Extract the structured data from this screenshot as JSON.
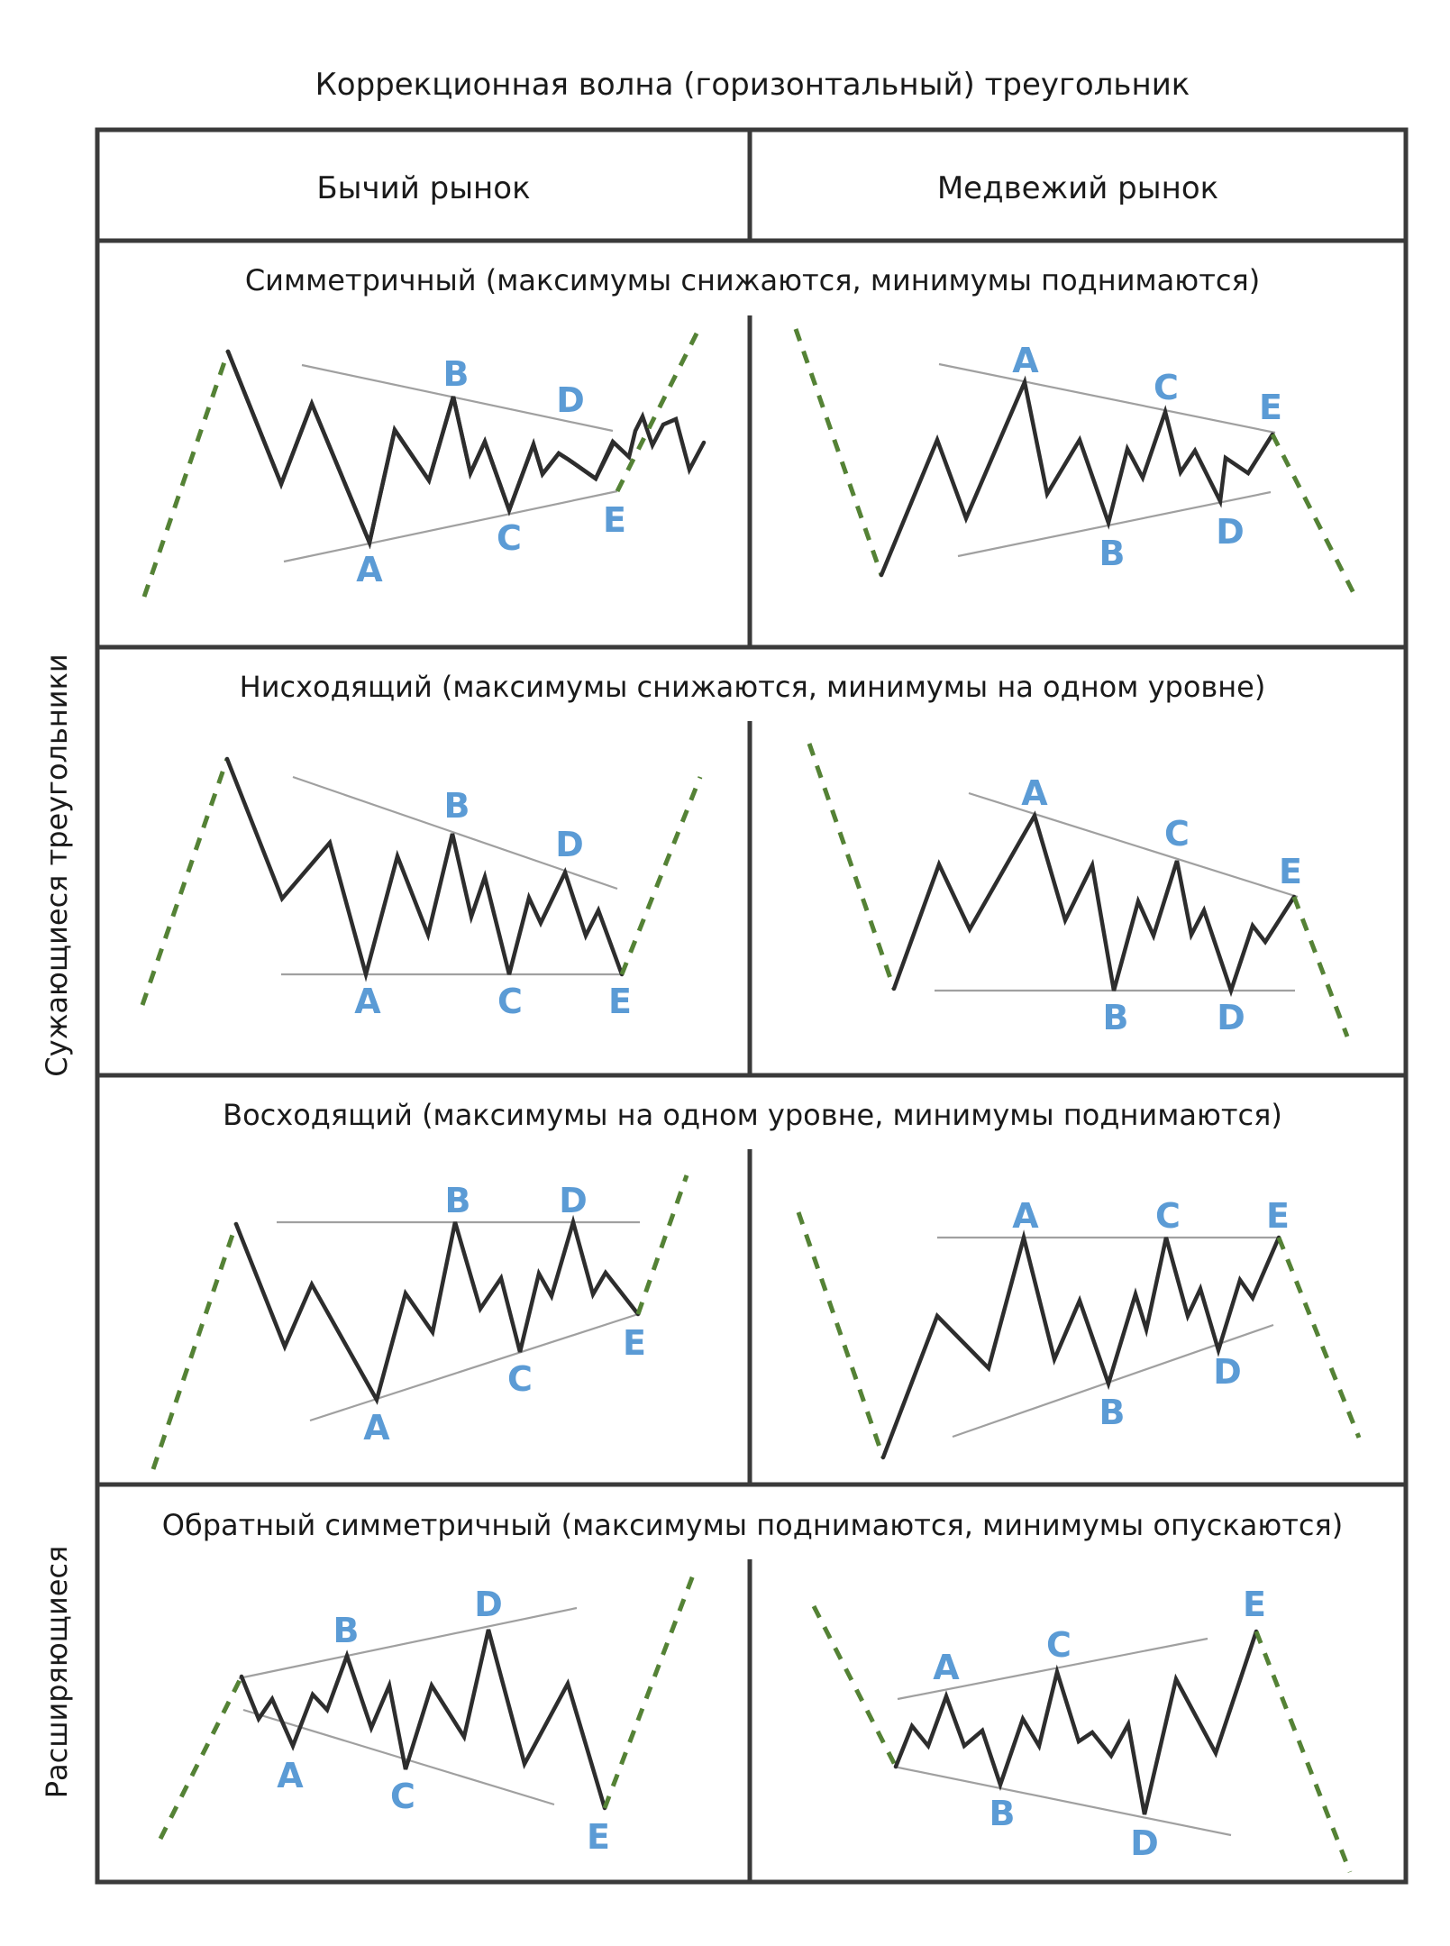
{
  "title": "Коррекционная волна (горизонтальный) треугольник",
  "columns": {
    "bull": "Бычий рынок",
    "bear": "Медвежий рынок"
  },
  "side_labels": {
    "contracting": "Сужающиеся треугольники",
    "expanding": "Расширяющиеся"
  },
  "rows": [
    {
      "id": "symmetric",
      "heading": "Симметричный (максимумы снижаются, минимумы поднимаются)",
      "bull": {
        "A": "A",
        "B": "B",
        "C": "C",
        "D": "D",
        "E": "E"
      },
      "bear": {
        "A": "A",
        "B": "B",
        "C": "C",
        "D": "D",
        "E": "E"
      }
    },
    {
      "id": "descending",
      "heading": "Нисходящий (максимумы снижаются, минимумы на одном уровне)",
      "bull": {
        "A": "A",
        "B": "B",
        "C": "C",
        "D": "D",
        "E": "E"
      },
      "bear": {
        "A": "A",
        "B": "B",
        "C": "C",
        "D": "D",
        "E": "E"
      }
    },
    {
      "id": "ascending",
      "heading": "Восходящий (максимумы на одном уровне, минимумы поднимаются)",
      "bull": {
        "A": "A",
        "B": "B",
        "C": "C",
        "D": "D",
        "E": "E"
      },
      "bear": {
        "A": "A",
        "B": "B",
        "C": "C",
        "D": "D",
        "E": "E"
      }
    },
    {
      "id": "expanding",
      "heading": "Обратный симметричный (максимумы поднимаются, минимумы опускаются)",
      "bull": {
        "A": "A",
        "B": "B",
        "C": "C",
        "D": "D",
        "E": "E"
      },
      "bear": {
        "A": "A",
        "B": "B",
        "C": "C",
        "D": "D",
        "E": "E"
      }
    }
  ],
  "colors": {
    "wave_label": "#5b9bd5",
    "impulse_dashed": "#548235",
    "price_line": "#2d2d2d",
    "trendline": "#a0a0a0",
    "frame": "#3a3a3a"
  }
}
